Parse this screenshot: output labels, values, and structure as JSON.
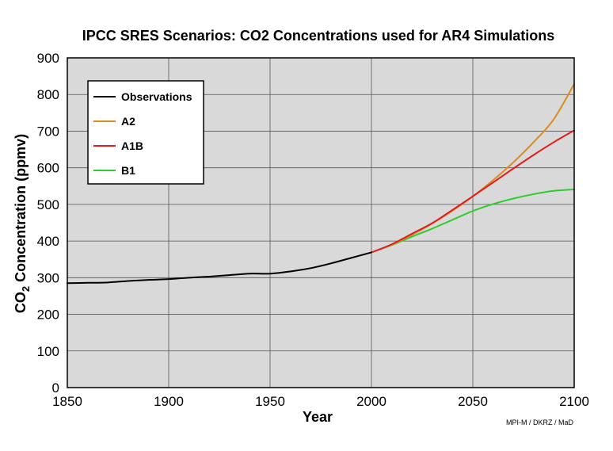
{
  "chart_data": {
    "type": "line",
    "title": "IPCC SRES Scenarios: CO2 Concentrations used for AR4 Simulations",
    "xlabel": "Year",
    "ylabel_main": "CO",
    "ylabel_sub": "2",
    "ylabel_rest": " Concentration (ppmv)",
    "xlim": [
      1850,
      2100
    ],
    "ylim": [
      0,
      900
    ],
    "xticks": [
      1850,
      1900,
      1950,
      2000,
      2050,
      2100
    ],
    "yticks": [
      0,
      100,
      200,
      300,
      400,
      500,
      600,
      700,
      800,
      900
    ],
    "grid": true,
    "legend_position": "top-left",
    "credit": "MPI-M / DKRZ / MaD",
    "series": [
      {
        "name": "Observations",
        "color": "#000000",
        "x": [
          1850,
          1860,
          1870,
          1880,
          1890,
          1900,
          1910,
          1920,
          1930,
          1940,
          1950,
          1960,
          1970,
          1980,
          1990,
          2000
        ],
        "y": [
          285,
          286,
          287,
          291,
          294,
          296,
          300,
          303,
          307,
          311,
          311,
          317,
          326,
          339,
          354,
          369
        ]
      },
      {
        "name": "A2",
        "color": "#d98c1c",
        "x": [
          2000,
          2010,
          2020,
          2030,
          2040,
          2050,
          2060,
          2070,
          2080,
          2090,
          2100
        ],
        "y": [
          369,
          390,
          417,
          448,
          483,
          522,
          566,
          615,
          670,
          733,
          829
        ]
      },
      {
        "name": "A1B",
        "color": "#e41a1c",
        "x": [
          2000,
          2010,
          2020,
          2030,
          2040,
          2050,
          2060,
          2070,
          2080,
          2090,
          2100
        ],
        "y": [
          369,
          391,
          420,
          449,
          485,
          522,
          560,
          598,
          635,
          670,
          702
        ]
      },
      {
        "name": "B1",
        "color": "#2ecc2e",
        "x": [
          2000,
          2010,
          2020,
          2030,
          2040,
          2050,
          2060,
          2070,
          2080,
          2090,
          2100
        ],
        "y": [
          369,
          389,
          412,
          434,
          458,
          482,
          501,
          516,
          528,
          537,
          541
        ]
      }
    ]
  }
}
